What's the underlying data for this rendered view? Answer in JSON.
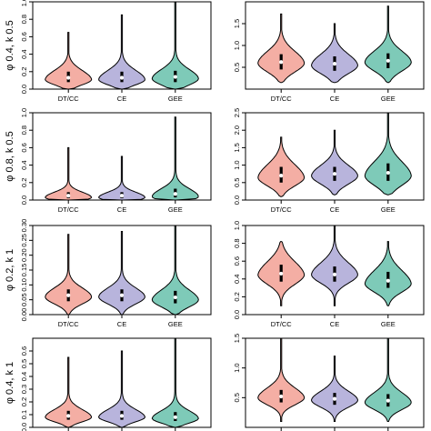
{
  "colors": {
    "DT/CC": "#f4aea4",
    "CE": "#b8b4dc",
    "GEE": "#7ecab8"
  },
  "chart_data": [
    {
      "type": "violin",
      "row_label": "φ 0.4, k 0.5",
      "ylim": [
        0,
        1.0
      ],
      "ytick_labels": [
        "0.0",
        "0.2",
        "0.4",
        "0.6",
        "0.8",
        "1.0"
      ],
      "categories": [
        "DT/CC",
        "CE",
        "GEE"
      ],
      "series": [
        {
          "name": "DT/CC",
          "q1": 0.08,
          "median": 0.13,
          "q3": 0.2,
          "min": 0.0,
          "max": 0.65,
          "mode": 0.11
        },
        {
          "name": "CE",
          "q1": 0.08,
          "median": 0.13,
          "q3": 0.2,
          "min": 0.0,
          "max": 0.85,
          "mode": 0.11
        },
        {
          "name": "GEE",
          "q1": 0.08,
          "median": 0.14,
          "q3": 0.21,
          "min": 0.0,
          "max": 1.0,
          "mode": 0.12
        }
      ]
    },
    {
      "type": "violin",
      "row_label": "",
      "ylim": [
        0,
        2.0
      ],
      "ytick_labels": [
        "0.5",
        "1.0",
        "1.5"
      ],
      "categories": [
        "DT/CC",
        "CE",
        "GEE"
      ],
      "series": [
        {
          "name": "DT/CC",
          "q1": 0.45,
          "median": 0.62,
          "q3": 0.8,
          "min": 0.15,
          "max": 1.72,
          "mode": 0.6
        },
        {
          "name": "CE",
          "q1": 0.42,
          "median": 0.58,
          "q3": 0.75,
          "min": 0.15,
          "max": 1.5,
          "mode": 0.55
        },
        {
          "name": "GEE",
          "q1": 0.48,
          "median": 0.65,
          "q3": 0.82,
          "min": 0.15,
          "max": 1.9,
          "mode": 0.62
        }
      ]
    },
    {
      "type": "violin",
      "row_label": "φ 0.8, k 0.5",
      "ylim": [
        0,
        1.0
      ],
      "ytick_labels": [
        "0.0",
        "0.2",
        "0.4",
        "0.6",
        "0.8",
        "1.0"
      ],
      "categories": [
        "DT/CC",
        "CE",
        "GEE"
      ],
      "series": [
        {
          "name": "DT/CC",
          "q1": 0.02,
          "median": 0.05,
          "q3": 0.09,
          "min": 0.0,
          "max": 0.6,
          "mode": 0.03
        },
        {
          "name": "CE",
          "q1": 0.02,
          "median": 0.05,
          "q3": 0.09,
          "min": 0.0,
          "max": 0.5,
          "mode": 0.03
        },
        {
          "name": "GEE",
          "q1": 0.03,
          "median": 0.07,
          "q3": 0.13,
          "min": 0.0,
          "max": 0.95,
          "mode": 0.04
        }
      ]
    },
    {
      "type": "violin",
      "row_label": "",
      "ylim": [
        0,
        2.5
      ],
      "ytick_labels": [
        "0.0",
        "0.5",
        "1.0",
        "1.5",
        "2.0",
        "2.5"
      ],
      "categories": [
        "DT/CC",
        "CE",
        "GEE"
      ],
      "series": [
        {
          "name": "DT/CC",
          "q1": 0.5,
          "median": 0.7,
          "q3": 0.95,
          "min": 0.1,
          "max": 1.8,
          "mode": 0.65
        },
        {
          "name": "CE",
          "q1": 0.55,
          "median": 0.75,
          "q3": 0.95,
          "min": 0.15,
          "max": 2.0,
          "mode": 0.7
        },
        {
          "name": "GEE",
          "q1": 0.55,
          "median": 0.78,
          "q3": 1.05,
          "min": 0.15,
          "max": 2.5,
          "mode": 0.7
        }
      ]
    },
    {
      "type": "violin",
      "row_label": "φ 0.2, k 1",
      "ylim": [
        0,
        0.3
      ],
      "ytick_labels": [
        "0.00",
        "0.05",
        "0.10",
        "0.15",
        "0.20",
        "0.25",
        "0.30"
      ],
      "categories": [
        "DT/CC",
        "CE",
        "GEE"
      ],
      "series": [
        {
          "name": "DT/CC",
          "q1": 0.045,
          "median": 0.065,
          "q3": 0.085,
          "min": 0.0,
          "max": 0.27,
          "mode": 0.06
        },
        {
          "name": "CE",
          "q1": 0.045,
          "median": 0.065,
          "q3": 0.085,
          "min": 0.0,
          "max": 0.28,
          "mode": 0.06
        },
        {
          "name": "GEE",
          "q1": 0.038,
          "median": 0.058,
          "q3": 0.08,
          "min": 0.0,
          "max": 0.3,
          "mode": 0.05
        }
      ]
    },
    {
      "type": "violin",
      "row_label": "",
      "ylim": [
        0,
        1.0
      ],
      "ytick_labels": [
        "0.0",
        "0.2",
        "0.4",
        "0.6",
        "0.8",
        "1.0"
      ],
      "categories": [
        "DT/CC",
        "CE",
        "GEE"
      ],
      "series": [
        {
          "name": "DT/CC",
          "q1": 0.37,
          "median": 0.46,
          "q3": 0.56,
          "min": 0.1,
          "max": 0.82,
          "mode": 0.45
        },
        {
          "name": "CE",
          "q1": 0.37,
          "median": 0.45,
          "q3": 0.54,
          "min": 0.1,
          "max": 1.0,
          "mode": 0.45
        },
        {
          "name": "GEE",
          "q1": 0.3,
          "median": 0.38,
          "q3": 0.48,
          "min": 0.1,
          "max": 0.82,
          "mode": 0.35
        }
      ]
    },
    {
      "type": "violin",
      "row_label": "φ 0.4, k 1",
      "ylim": [
        0,
        0.7
      ],
      "ytick_labels": [
        "0.0",
        "0.1",
        "0.2",
        "0.3",
        "0.4",
        "0.5",
        "0.6"
      ],
      "categories": [
        "DT/CC",
        "CE",
        "GEE"
      ],
      "series": [
        {
          "name": "DT/CC",
          "q1": 0.06,
          "median": 0.09,
          "q3": 0.13,
          "min": 0.0,
          "max": 0.55,
          "mode": 0.08
        },
        {
          "name": "CE",
          "q1": 0.06,
          "median": 0.09,
          "q3": 0.13,
          "min": 0.0,
          "max": 0.6,
          "mode": 0.08
        },
        {
          "name": "GEE",
          "q1": 0.05,
          "median": 0.08,
          "q3": 0.12,
          "min": 0.0,
          "max": 0.7,
          "mode": 0.07
        }
      ]
    },
    {
      "type": "violin",
      "row_label": "",
      "ylim": [
        0,
        1.5
      ],
      "ytick_labels": [
        "0.5",
        "1.0",
        "1.5"
      ],
      "categories": [
        "DT/CC",
        "CE",
        "GEE"
      ],
      "series": [
        {
          "name": "DT/CC",
          "q1": 0.42,
          "median": 0.52,
          "q3": 0.63,
          "min": 0.1,
          "max": 1.5,
          "mode": 0.5
        },
        {
          "name": "CE",
          "q1": 0.38,
          "median": 0.48,
          "q3": 0.58,
          "min": 0.1,
          "max": 1.2,
          "mode": 0.46
        },
        {
          "name": "GEE",
          "q1": 0.35,
          "median": 0.45,
          "q3": 0.56,
          "min": 0.1,
          "max": 1.5,
          "mode": 0.42
        }
      ]
    }
  ]
}
